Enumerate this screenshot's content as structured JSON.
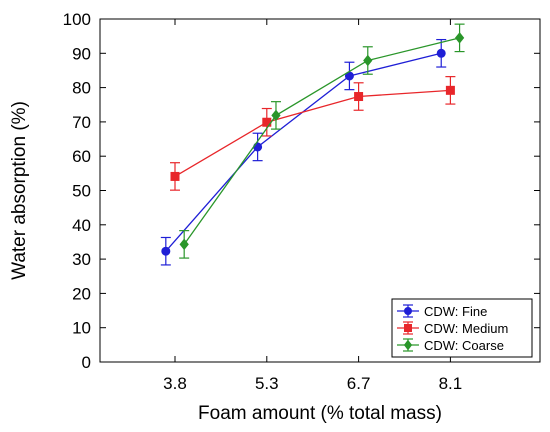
{
  "chart_data": {
    "type": "line",
    "xlabel": "Foam amount (% total mass)",
    "ylabel": "Water absorption (%)",
    "categories": [
      "3.8",
      "5.3",
      "6.7",
      "8.1"
    ],
    "ylim": [
      0,
      100
    ],
    "yticks": [
      0,
      10,
      20,
      30,
      40,
      50,
      60,
      70,
      80,
      90,
      100
    ],
    "grid": false,
    "legend_position": "bottom-right",
    "series": [
      {
        "name": "CDW: Fine",
        "color": "#1f1fd6",
        "marker": "circle",
        "x_offset_fraction": -0.1,
        "values": [
          32.3,
          62.7,
          83.4,
          90.0
        ],
        "errors": [
          4.0,
          4.0,
          4.0,
          4.0
        ]
      },
      {
        "name": "CDW: Medium",
        "color": "#e8262a",
        "marker": "square",
        "x_offset_fraction": 0.0,
        "values": [
          54.1,
          69.9,
          77.4,
          79.2
        ],
        "errors": [
          4.0,
          4.0,
          4.0,
          4.0
        ]
      },
      {
        "name": "CDW: Coarse",
        "color": "#2a962a",
        "marker": "diamond",
        "x_offset_fraction": 0.1,
        "values": [
          34.3,
          71.9,
          87.9,
          94.5
        ],
        "errors": [
          4.0,
          4.0,
          4.0,
          4.0
        ]
      }
    ]
  }
}
